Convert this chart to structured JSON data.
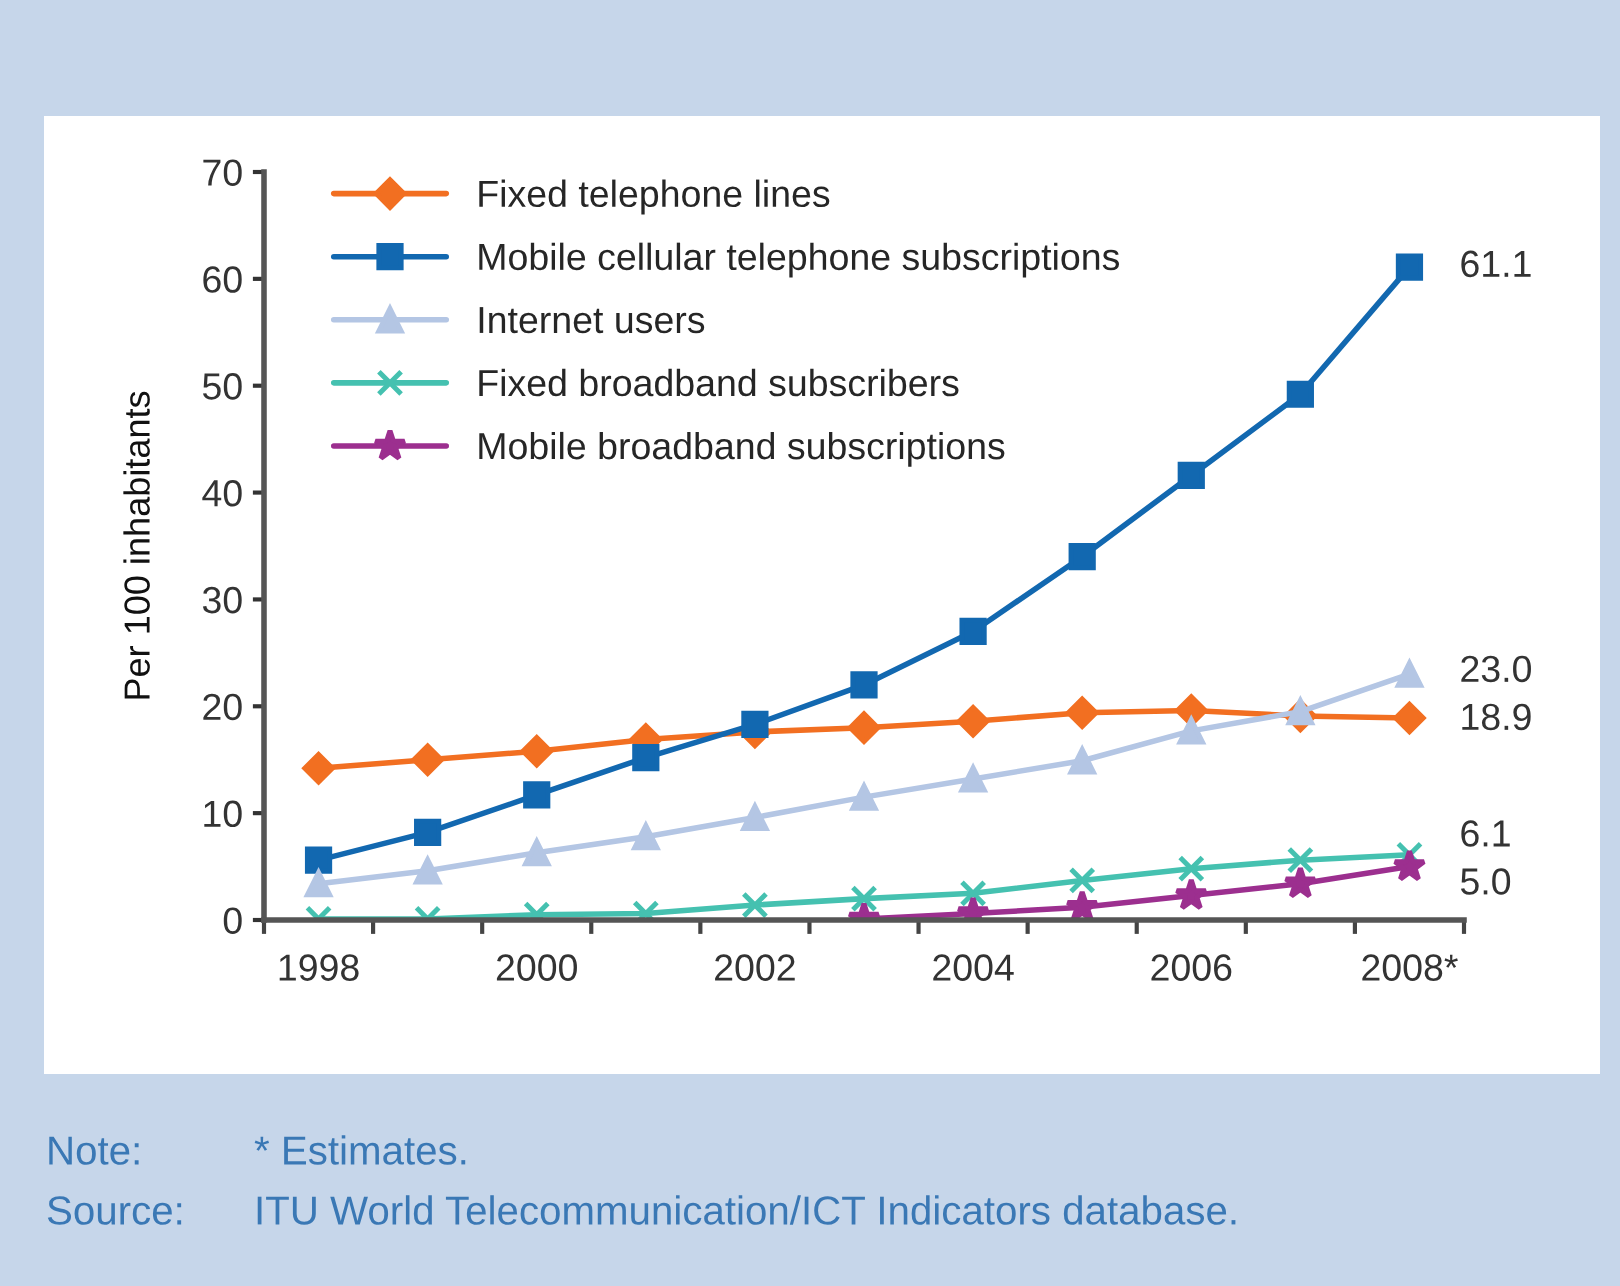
{
  "chart_data": {
    "type": "line",
    "ylabel": "Per 100 inhabitants",
    "categories": [
      "1998",
      null,
      "2000",
      null,
      "2002",
      null,
      "2004",
      null,
      "2006",
      null,
      "2008*"
    ],
    "ylim": [
      0,
      70
    ],
    "yticks": [
      0,
      10,
      20,
      30,
      40,
      50,
      60,
      70
    ],
    "legend": "top left",
    "series": [
      {
        "name": "Fixed telephone lines",
        "color": "#f26f21",
        "marker": "diamond",
        "values": [
          14.2,
          15.0,
          15.8,
          16.9,
          17.6,
          18.0,
          18.6,
          19.4,
          19.6,
          19.1,
          18.9
        ],
        "value_labels": [
          null,
          null,
          null,
          null,
          null,
          null,
          null,
          null,
          null,
          null,
          "18.9"
        ]
      },
      {
        "name": "Mobile cellular telephone subscriptions",
        "color": "#1268b0",
        "marker": "square",
        "values": [
          5.6,
          8.2,
          11.7,
          15.2,
          18.3,
          22.0,
          27.0,
          34.0,
          41.6,
          49.2,
          61.1
        ],
        "value_labels": [
          null,
          null,
          null,
          null,
          null,
          null,
          null,
          null,
          null,
          null,
          "61.1"
        ]
      },
      {
        "name": "Internet users",
        "color": "#b4c6e4",
        "marker": "triangle",
        "values": [
          3.4,
          4.6,
          6.3,
          7.8,
          9.6,
          11.5,
          13.2,
          14.9,
          17.7,
          19.5,
          23.0
        ],
        "value_labels": [
          null,
          null,
          null,
          null,
          null,
          null,
          null,
          null,
          null,
          null,
          "23.0"
        ]
      },
      {
        "name": "Fixed broadband subscribers",
        "color": "#45c1b0",
        "marker": "cross",
        "values": [
          0.1,
          0.1,
          0.5,
          0.6,
          1.4,
          2.0,
          2.5,
          3.7,
          4.8,
          5.6,
          6.1
        ],
        "value_labels": [
          null,
          null,
          null,
          null,
          null,
          null,
          null,
          null,
          null,
          null,
          "6.1"
        ]
      },
      {
        "name": "Mobile broadband subscriptions",
        "color": "#9c2f8f",
        "marker": "star",
        "values": [
          null,
          null,
          null,
          null,
          null,
          0.1,
          0.6,
          1.2,
          2.3,
          3.4,
          5.0
        ],
        "value_labels": [
          null,
          null,
          null,
          null,
          null,
          null,
          null,
          null,
          null,
          null,
          "5.0"
        ]
      }
    ],
    "annotations": [
      "Note:",
      "* Estimates.",
      "Source:",
      "ITU World Telecommunication/ICT Indicators database."
    ]
  }
}
